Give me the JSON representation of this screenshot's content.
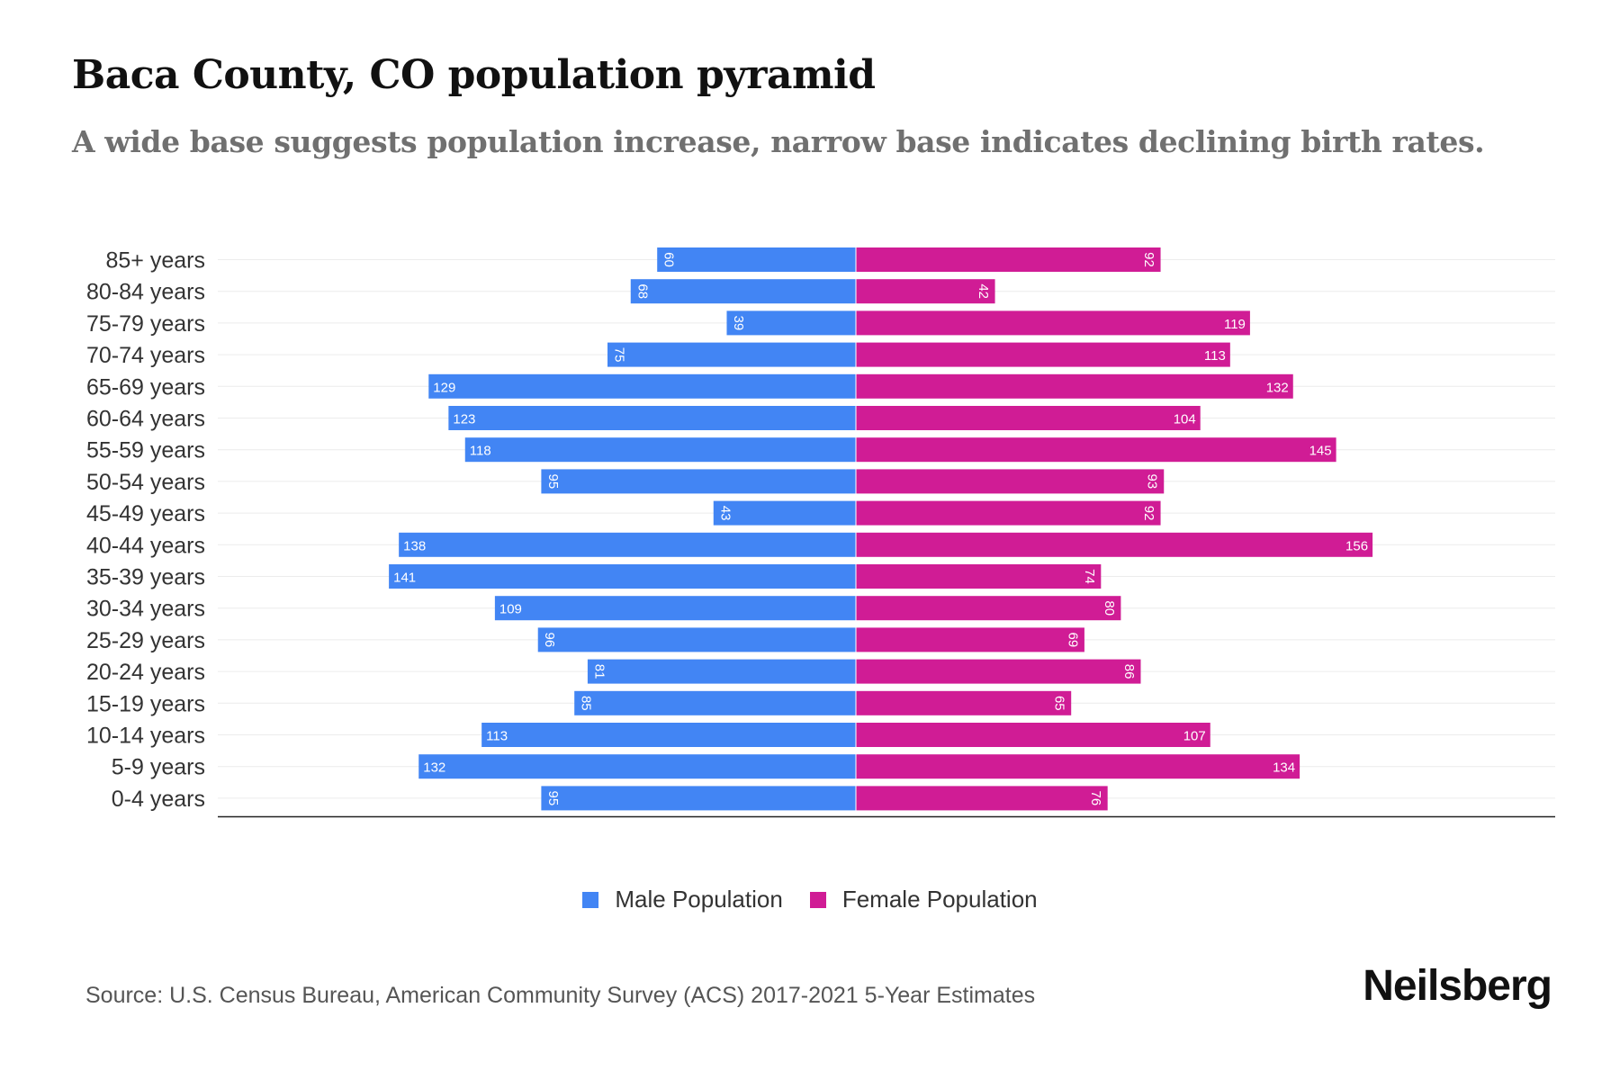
{
  "header": {
    "title": "Baca County, CO population pyramid",
    "subtitle": "A wide base suggests population increase, narrow base indicates declining birth rates."
  },
  "legend": {
    "male_label": "Male Population",
    "female_label": "Female Population"
  },
  "footer": {
    "source": "Source: U.S. Census Bureau, American Community Survey (ACS) 2017-2021 5-Year Estimates",
    "brand": "Neilsberg"
  },
  "colors": {
    "male": "#4285F4",
    "female": "#D01C95",
    "grid": "#ececec",
    "axis": "#222222"
  },
  "chart_data": {
    "type": "bar",
    "orientation": "horizontal-diverging",
    "title": "Baca County, CO population pyramid",
    "categories": [
      "85+ years",
      "80-84 years",
      "75-79 years",
      "70-74 years",
      "65-69 years",
      "60-64 years",
      "55-59 years",
      "50-54 years",
      "45-49 years",
      "40-44 years",
      "35-39 years",
      "30-34 years",
      "25-29 years",
      "20-24 years",
      "15-19 years",
      "10-14 years",
      "5-9 years",
      "0-4 years"
    ],
    "series": [
      {
        "name": "Male Population",
        "values": [
          60,
          68,
          39,
          75,
          129,
          123,
          118,
          95,
          43,
          138,
          141,
          109,
          96,
          81,
          85,
          113,
          132,
          95
        ]
      },
      {
        "name": "Female Population",
        "values": [
          92,
          42,
          119,
          113,
          132,
          104,
          145,
          93,
          92,
          156,
          74,
          80,
          69,
          86,
          65,
          107,
          134,
          76
        ]
      }
    ],
    "xlim": [
      -158,
      172
    ],
    "legend_position": "bottom-center",
    "grid": true
  }
}
